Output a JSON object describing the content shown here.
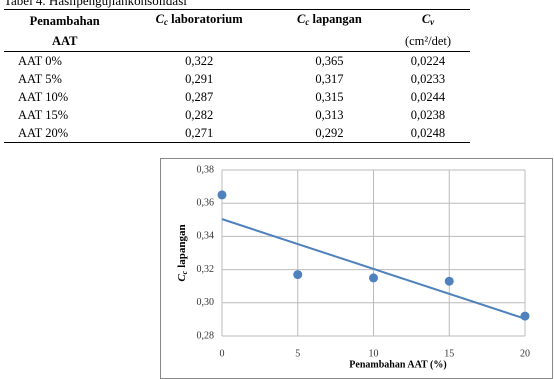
{
  "table": {
    "caption": "Tabel 4. Hasilpengujiankonsolidasi",
    "headers": [
      {
        "line1": "Penambahan",
        "line2": "AAT"
      },
      {
        "symbol": "C",
        "sub": "c",
        "text": "laboratorium"
      },
      {
        "symbol": "C",
        "sub": "c",
        "text": "lapangan"
      },
      {
        "symbol": "C",
        "sub": "v",
        "unit": "(cm²/det)"
      }
    ],
    "rows": [
      [
        "AAT 0%",
        "0,322",
        "0,365",
        "0,0224"
      ],
      [
        "AAT 5%",
        "0,291",
        "0,317",
        "0,0233"
      ],
      [
        "AAT 10%",
        "0,287",
        "0,315",
        "0,0244"
      ],
      [
        "AAT 15%",
        "0,282",
        "0,313",
        "0,0238"
      ],
      [
        "AAT 20%",
        "0,271",
        "0,292",
        "0,0248"
      ]
    ]
  },
  "chart_data": {
    "type": "scatter",
    "x_label": "Penambahan AAT (%)",
    "y_label": {
      "symbol": "C",
      "sub": "c",
      "text": "lapangan"
    },
    "x": [
      0,
      5,
      10,
      15,
      20
    ],
    "values": [
      0.365,
      0.317,
      0.315,
      0.313,
      0.292
    ],
    "color": "#4f81bd",
    "trendline": {
      "x": [
        0,
        20
      ],
      "values": [
        0.3504,
        0.2904
      ],
      "color": "#4f81bd"
    },
    "xlim": [
      0,
      20
    ],
    "xticks": [
      0,
      5,
      10,
      15,
      20
    ],
    "ylim": [
      0.28,
      0.38
    ],
    "yticks": [
      {
        "value": 0.28,
        "label": "0,28"
      },
      {
        "value": 0.3,
        "label": "0,30"
      },
      {
        "value": 0.32,
        "label": "0,32"
      },
      {
        "value": 0.34,
        "label": "0,34"
      },
      {
        "value": 0.36,
        "label": "0,36"
      },
      {
        "value": 0.38,
        "label": "0,38"
      }
    ],
    "grid": true
  }
}
